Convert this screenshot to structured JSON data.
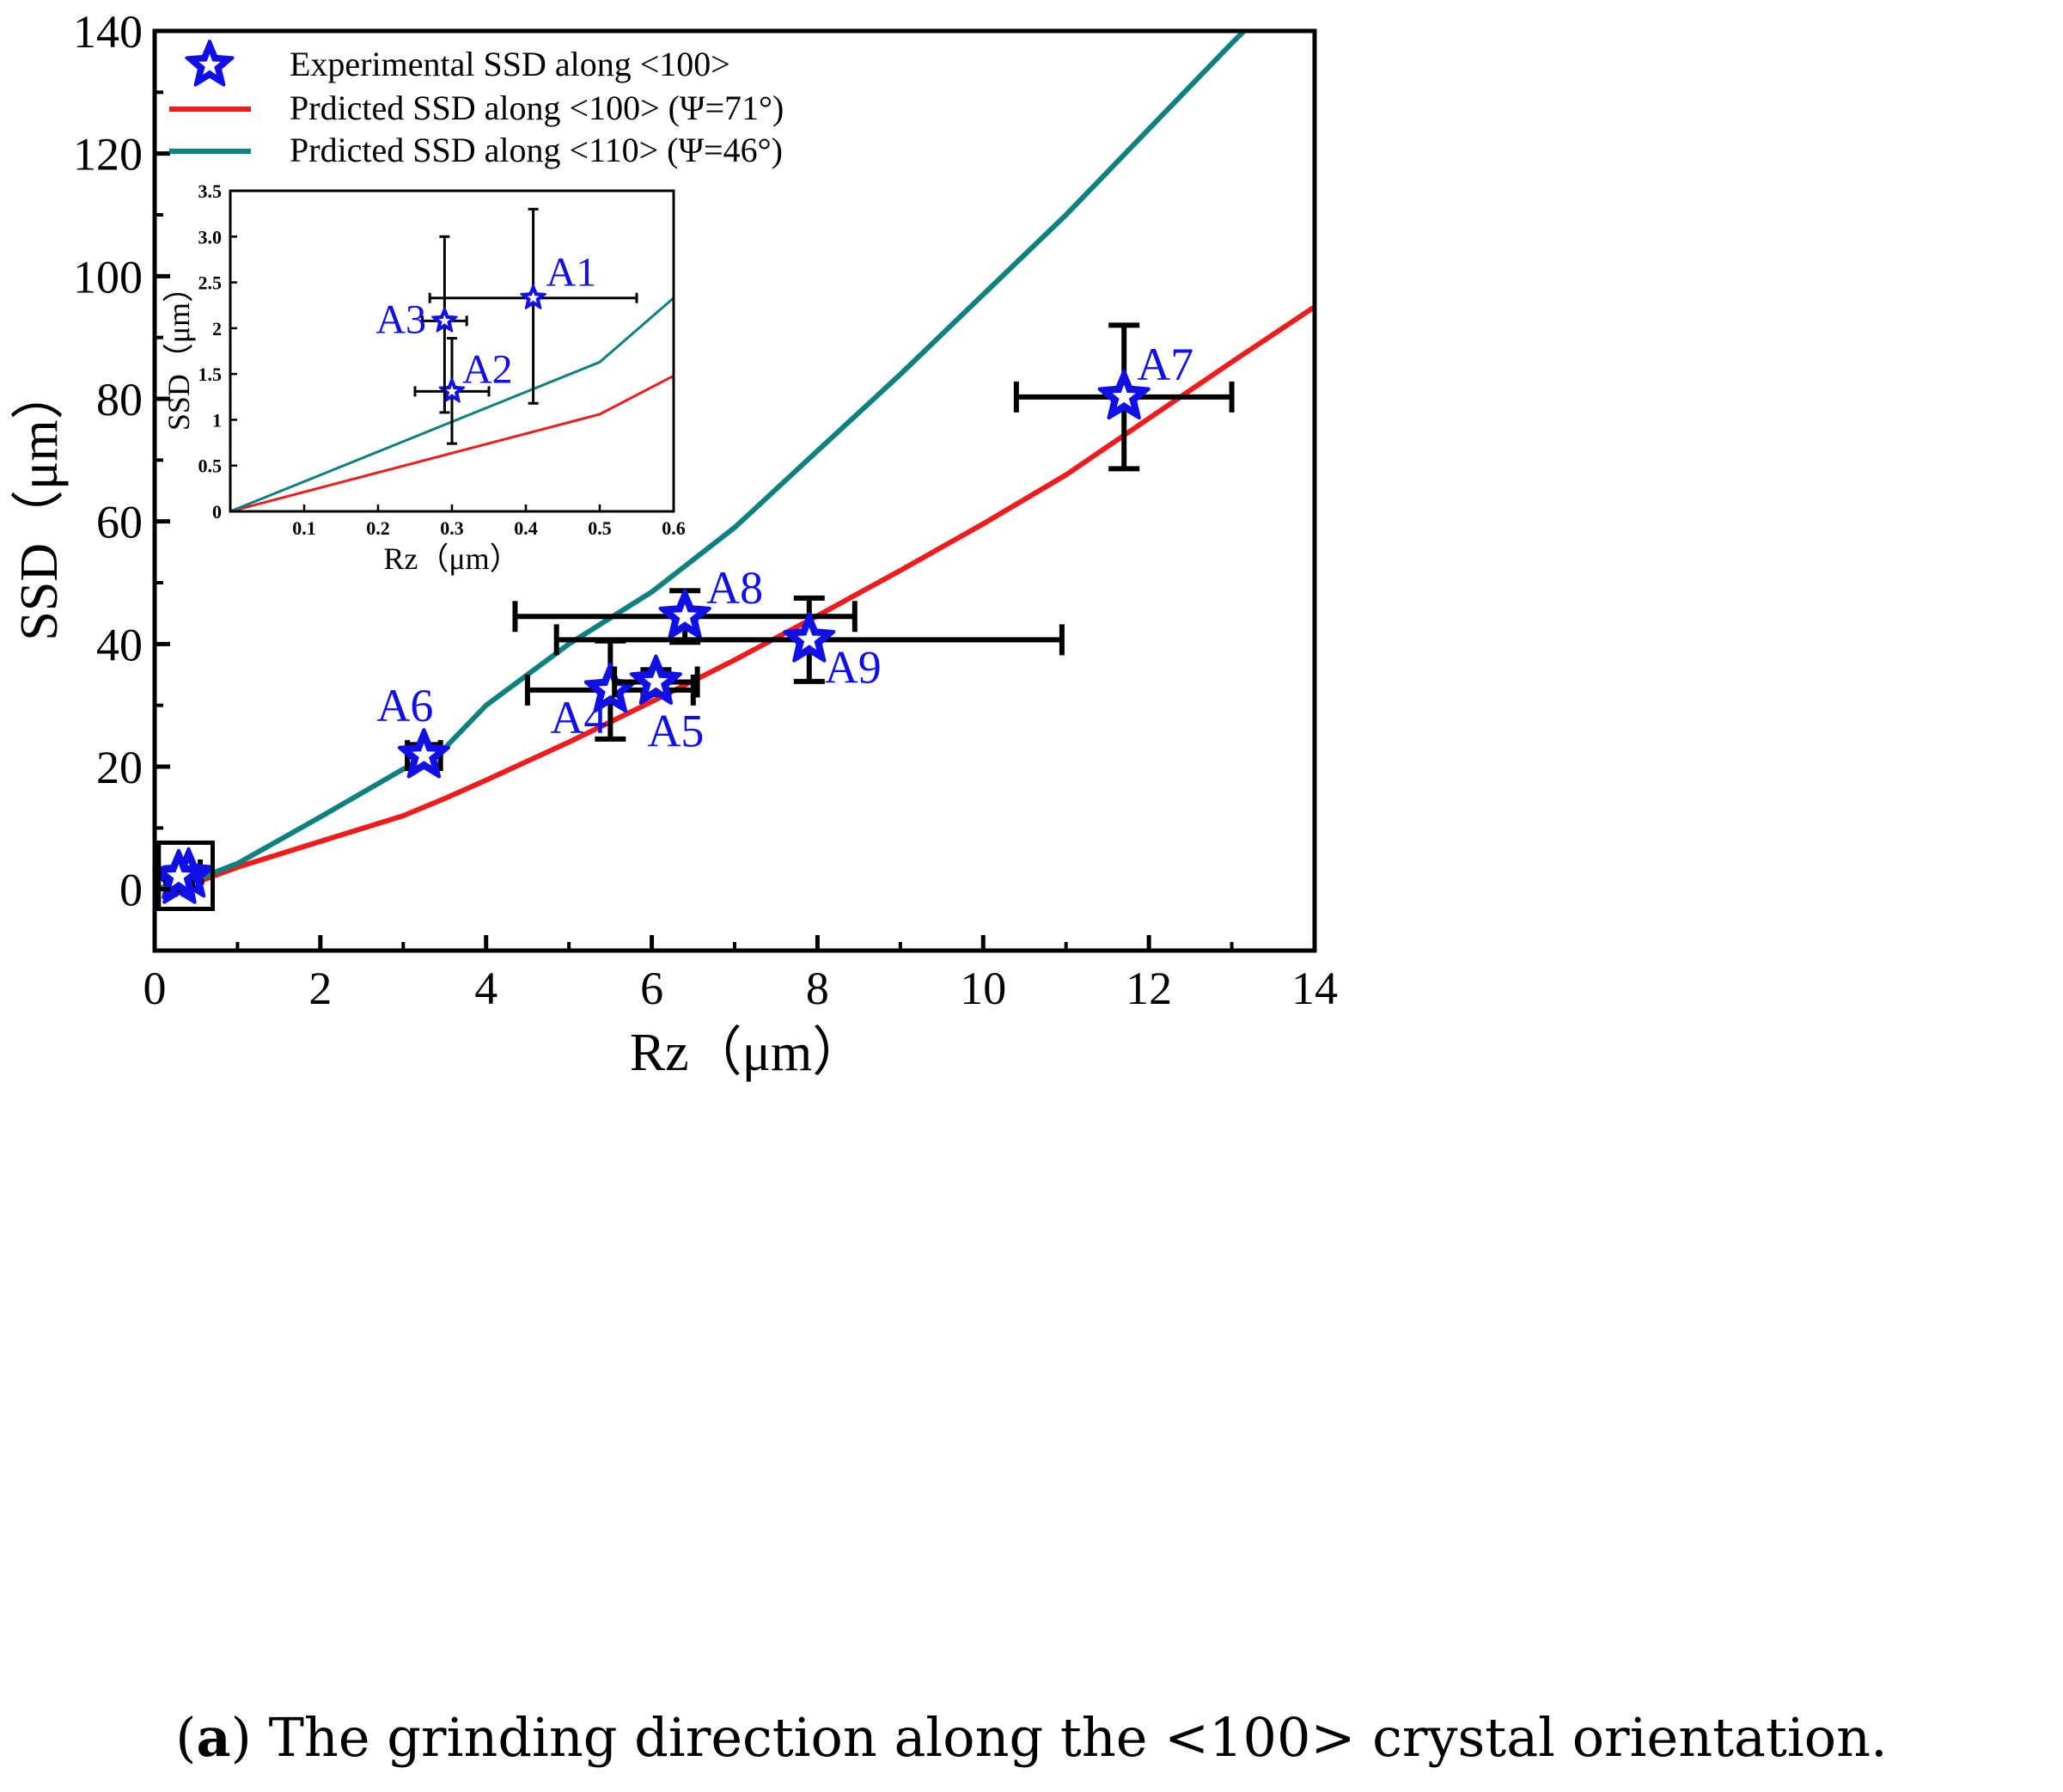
{
  "caption": {
    "label": "a",
    "text": "The grinding direction along the <100> crystal orientation."
  },
  "colors": {
    "experimental": "#1010e6",
    "predicted_100": "#ee1c1c",
    "predicted_110": "#0e8080",
    "errorbar": "#000000"
  },
  "chart_data": [
    {
      "id": "main",
      "type": "scatter",
      "title": "",
      "xlabel": "Rz（μm）",
      "ylabel": "SSD（μm）",
      "xlim": [
        0,
        14
      ],
      "ylim": [
        -10,
        140
      ],
      "xticks": [
        0,
        2,
        4,
        6,
        8,
        10,
        12,
        14
      ],
      "yticks": [
        0,
        20,
        40,
        60,
        80,
        100,
        120,
        140
      ],
      "grid": false,
      "legend": {
        "placement": "top-left",
        "entries": [
          "Experimental SSD along <100>",
          "Prdicted SSD along <100> (Ψ=71°)",
          "Prdicted SSD along <110> (Ψ=46°)"
        ]
      },
      "series": [
        {
          "name": "Experimental SSD along <100>",
          "kind": "points",
          "points": [
            {
              "label": "A1",
              "x": 0.41,
              "y": 2.33,
              "xerr": [
                0.14,
                0.14
              ],
              "yerr": [
                1.15,
                0.97
              ]
            },
            {
              "label": "A2",
              "x": 0.3,
              "y": 1.31,
              "xerr": [
                0.05,
                0.05
              ],
              "yerr": [
                0.57,
                0.58
              ]
            },
            {
              "label": "A3",
              "x": 0.29,
              "y": 2.08,
              "xerr": [
                0.03,
                0.03
              ],
              "yerr": [
                1.0,
                0.92
              ]
            },
            {
              "label": "A4",
              "x": 5.5,
              "y": 32.5,
              "xerr": [
                1.0,
                1.0
              ],
              "yerr": [
                8.0,
                8.0
              ]
            },
            {
              "label": "A5",
              "x": 6.05,
              "y": 33.8,
              "xerr": [
                0.5,
                0.5
              ],
              "yerr": [
                2.0,
                2.0
              ]
            },
            {
              "label": "A6",
              "x": 3.25,
              "y": 21.8,
              "xerr": [
                0.2,
                0.2
              ],
              "yerr": [
                1.8,
                1.8
              ]
            },
            {
              "label": "A7",
              "x": 11.7,
              "y": 80.3,
              "xerr": [
                1.3,
                1.3
              ],
              "yerr": [
                11.7,
                11.7
              ]
            },
            {
              "label": "A8",
              "x": 6.4,
              "y": 44.5,
              "xerr": [
                2.05,
                2.05
              ],
              "yerr": [
                4.2,
                4.2
              ]
            },
            {
              "label": "A9",
              "x": 7.9,
              "y": 40.7,
              "xerr": [
                3.05,
                3.05
              ],
              "yerr": [
                6.8,
                6.8
              ]
            }
          ]
        },
        {
          "name": "Prdicted SSD along <100> (Ψ=71°)",
          "kind": "line",
          "x": [
            0,
            0.5,
            1,
            2,
            3,
            3.5,
            4,
            5,
            6,
            7,
            8,
            9,
            10,
            11,
            12,
            13,
            14
          ],
          "y": [
            0,
            1.1,
            3.6,
            7.8,
            12.0,
            14.8,
            17.8,
            24.0,
            30.6,
            37.4,
            44.6,
            52.0,
            59.6,
            67.6,
            76.8,
            86.0,
            95.0
          ]
        },
        {
          "name": "Prdicted SSD along <110> (Ψ=46°)",
          "kind": "line",
          "x": [
            0,
            0.5,
            1,
            2,
            3,
            3.5,
            4,
            5,
            6,
            7,
            8,
            9,
            10,
            11,
            12,
            13,
            13.15
          ],
          "y": [
            0,
            1.6,
            4.2,
            11.8,
            19.6,
            23.0,
            30.0,
            40.0,
            48.5,
            59.0,
            71.5,
            84.0,
            97.0,
            110.0,
            124.0,
            138.0,
            140.0
          ]
        }
      ],
      "annotations": [
        {
          "type": "zoom-box",
          "x": [
            0.05,
            0.7
          ],
          "y": [
            -3.2,
            7.6
          ]
        }
      ]
    },
    {
      "id": "inset",
      "type": "scatter",
      "xlabel": "Rz（μm）",
      "ylabel": "SSD（μm）",
      "xlim": [
        0,
        0.6
      ],
      "ylim": [
        0,
        3.5
      ],
      "xticks": [
        0.1,
        0.2,
        0.3,
        0.4,
        0.5,
        0.6
      ],
      "yticks": [
        0,
        0.5,
        1,
        1.5,
        2,
        2.5,
        3.0,
        3.5
      ],
      "ytick_labels": [
        "0",
        "0.5",
        "1",
        "1.5",
        "2",
        "2.5",
        "3.0",
        "3.5"
      ],
      "grid": false,
      "series": [
        {
          "name": "Experimental SSD along <100>",
          "kind": "points",
          "ref": "main:A1,A2,A3"
        },
        {
          "name": "Prdicted SSD along <100> (Ψ=71°)",
          "kind": "line",
          "x": [
            0,
            0.5,
            0.6
          ],
          "y": [
            0,
            1.06,
            1.48
          ]
        },
        {
          "name": "Prdicted SSD along <110> (Ψ=46°)",
          "kind": "line",
          "x": [
            0,
            0.5,
            0.6
          ],
          "y": [
            0,
            1.63,
            2.33
          ]
        }
      ]
    }
  ]
}
